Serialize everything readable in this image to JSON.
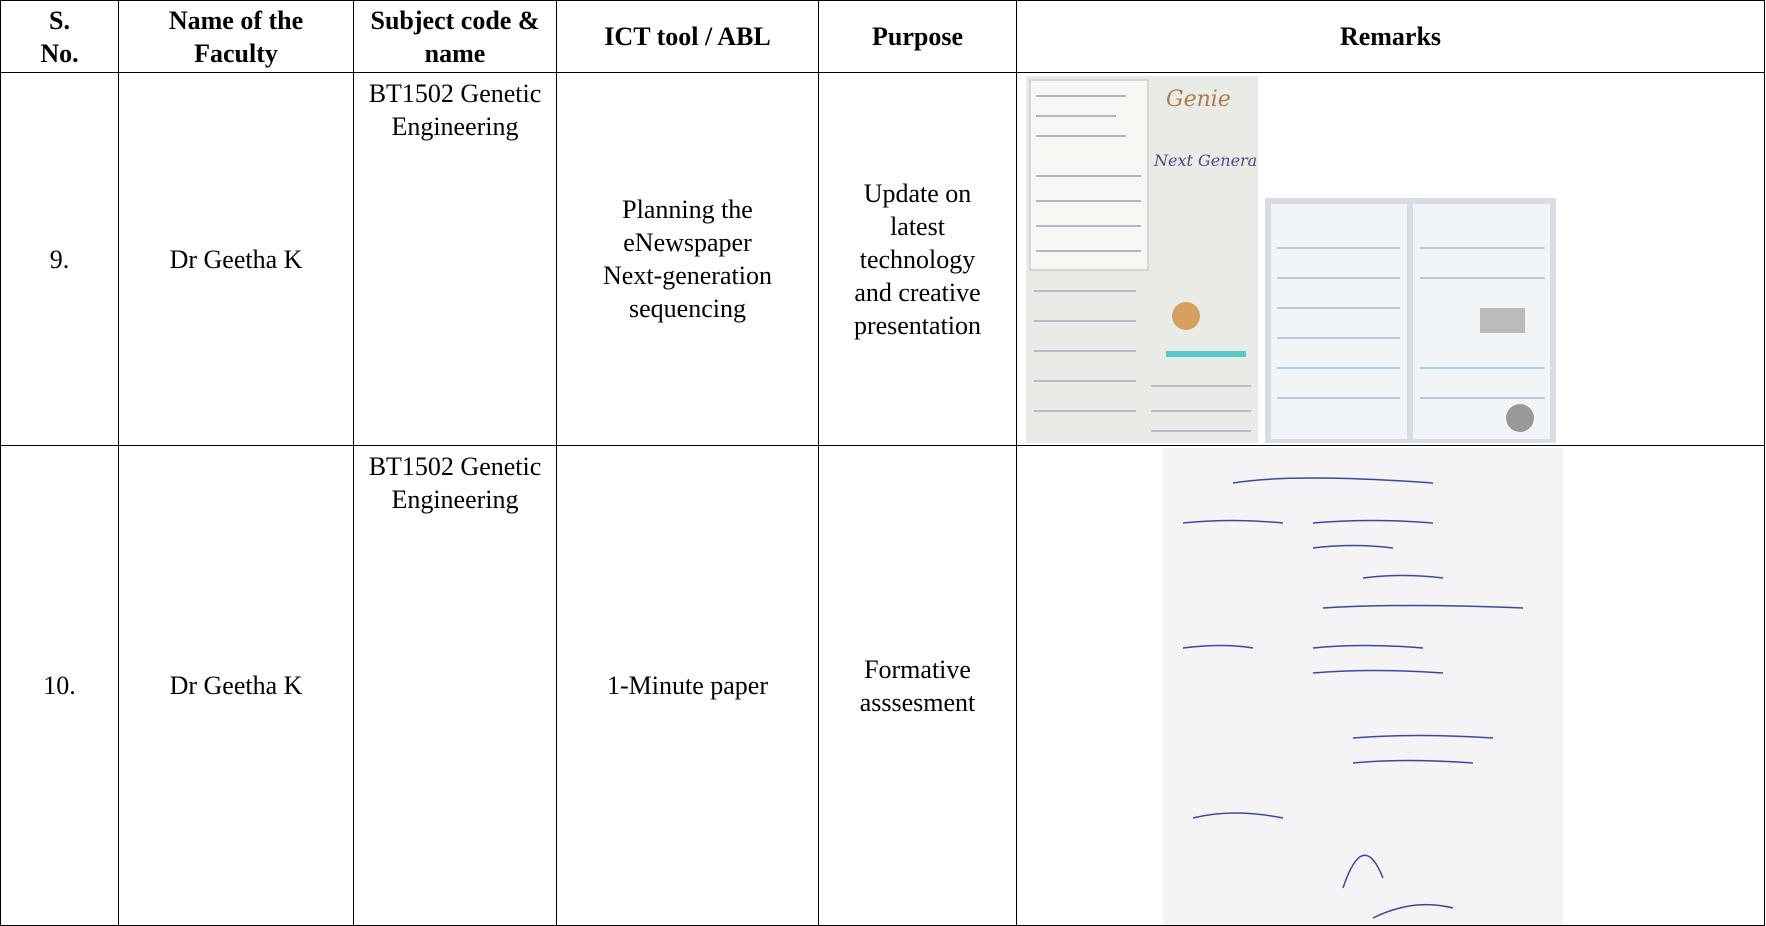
{
  "table": {
    "header": [
      [
        "S.",
        "No."
      ],
      [
        "Name of the",
        "Faculty"
      ],
      [
        "Subject code &",
        "name"
      ],
      [
        "ICT tool / ABL"
      ],
      [
        "Purpose"
      ],
      [
        "Remarks"
      ]
    ],
    "rows": [
      [
        [
          "9."
        ],
        [
          "Dr Geetha K"
        ],
        [
          "BT1502 Genetic",
          "Engineering"
        ],
        [
          "Planning the",
          "eNewspaper",
          "Next-generation",
          "sequencing"
        ],
        [
          "Update on",
          "latest",
          "technology",
          "and creative",
          "presentation"
        ]
      ],
      [
        [
          "10."
        ],
        [
          "Dr Geetha K"
        ],
        [
          "BT1502 Genetic",
          "Engineering"
        ],
        [
          "1-Minute paper"
        ],
        [
          "Formative",
          "asssesment"
        ]
      ]
    ]
  }
}
